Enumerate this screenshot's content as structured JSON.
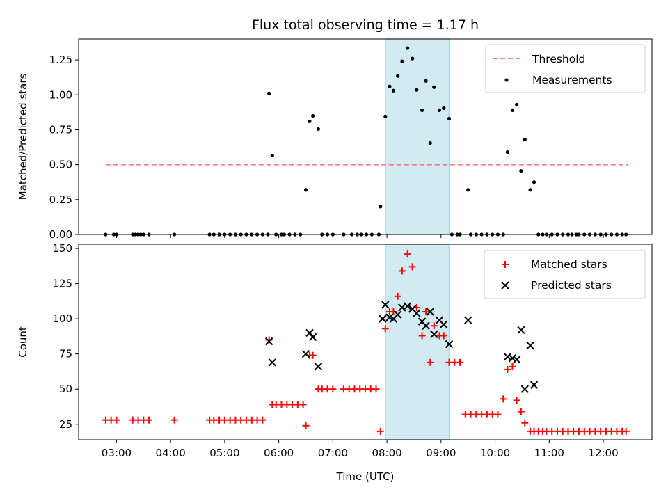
{
  "chart_data": {
    "type": "scatter",
    "title": "Flux total observing time = 1.17 h",
    "xlabel": "Time (UTC)",
    "x_tick_labels": [
      "03:00",
      "04:00",
      "05:00",
      "06:00",
      "07:00",
      "08:00",
      "09:00",
      "10:00",
      "11:00",
      "12:00"
    ],
    "x_ticks_hours": [
      3,
      4,
      5,
      6,
      7,
      8,
      9,
      10,
      11,
      12
    ],
    "xlim_hours": [
      2.3,
      12.9
    ],
    "highlight_span_hours": [
      7.97,
      9.15
    ],
    "colors": {
      "threshold": "#f08080",
      "measurements": "#000000",
      "matched": "#ff0000",
      "predicted": "#000000",
      "span": "#add8e6"
    },
    "top": {
      "ylabel": "Matched/Predicted stars",
      "ylim": [
        0,
        1.4
      ],
      "yticks": [
        0,
        0.25,
        0.5,
        0.75,
        1.0,
        1.25
      ],
      "ytick_labels": [
        "0.00",
        "0.25",
        "0.50",
        "0.75",
        "1.00",
        "1.25"
      ],
      "threshold": {
        "label": "Threshold",
        "value": 0.5,
        "x_range": [
          2.8,
          12.45
        ]
      },
      "legend": [
        "Threshold",
        "Measurements"
      ],
      "measurements": {
        "label": "Measurements",
        "points": [
          [
            2.8,
            0
          ],
          [
            2.95,
            0
          ],
          [
            3.0,
            0
          ],
          [
            3.3,
            0
          ],
          [
            3.35,
            0
          ],
          [
            3.4,
            0
          ],
          [
            3.45,
            0
          ],
          [
            3.5,
            0
          ],
          [
            3.6,
            0
          ],
          [
            4.07,
            0
          ],
          [
            4.72,
            0
          ],
          [
            4.8,
            0
          ],
          [
            4.9,
            0
          ],
          [
            5.0,
            0
          ],
          [
            5.1,
            0
          ],
          [
            5.2,
            0
          ],
          [
            5.3,
            0
          ],
          [
            5.4,
            0
          ],
          [
            5.5,
            0
          ],
          [
            5.6,
            0
          ],
          [
            5.7,
            0
          ],
          [
            5.8,
            0
          ],
          [
            5.82,
            1.01
          ],
          [
            5.88,
            0.565
          ],
          [
            5.95,
            0
          ],
          [
            6.05,
            0
          ],
          [
            6.1,
            0
          ],
          [
            6.2,
            0
          ],
          [
            6.3,
            0
          ],
          [
            6.4,
            0
          ],
          [
            6.5,
            0.32
          ],
          [
            6.57,
            0.81
          ],
          [
            6.63,
            0.85
          ],
          [
            6.73,
            0.755
          ],
          [
            6.8,
            0
          ],
          [
            6.9,
            0
          ],
          [
            7.0,
            0
          ],
          [
            7.2,
            0
          ],
          [
            7.35,
            0
          ],
          [
            7.45,
            0
          ],
          [
            7.52,
            0
          ],
          [
            7.62,
            0
          ],
          [
            7.72,
            0
          ],
          [
            7.85,
            0
          ],
          [
            7.88,
            0.2
          ],
          [
            7.97,
            0.845
          ],
          [
            8.05,
            1.06
          ],
          [
            8.12,
            1.03
          ],
          [
            8.2,
            1.135
          ],
          [
            8.28,
            1.24
          ],
          [
            8.38,
            1.335
          ],
          [
            8.47,
            1.26
          ],
          [
            8.55,
            1.035
          ],
          [
            8.65,
            0.89
          ],
          [
            8.72,
            1.1
          ],
          [
            8.8,
            0.655
          ],
          [
            8.87,
            1.055
          ],
          [
            8.97,
            0.89
          ],
          [
            9.05,
            0.905
          ],
          [
            9.15,
            0.83
          ],
          [
            9.2,
            0
          ],
          [
            9.3,
            0
          ],
          [
            9.35,
            0
          ],
          [
            9.5,
            0.32
          ],
          [
            9.55,
            0
          ],
          [
            9.65,
            0
          ],
          [
            9.75,
            0
          ],
          [
            9.85,
            0
          ],
          [
            9.95,
            0
          ],
          [
            10.05,
            0
          ],
          [
            10.15,
            0
          ],
          [
            10.23,
            0.59
          ],
          [
            10.32,
            0.89
          ],
          [
            10.4,
            0.93
          ],
          [
            10.48,
            0.455
          ],
          [
            10.55,
            0.68
          ],
          [
            10.65,
            0.32
          ],
          [
            10.72,
            0.375
          ],
          [
            10.8,
            0
          ],
          [
            10.88,
            0
          ],
          [
            10.95,
            0
          ],
          [
            11.05,
            0
          ],
          [
            11.15,
            0
          ],
          [
            11.25,
            0
          ],
          [
            11.35,
            0
          ],
          [
            11.42,
            0
          ],
          [
            11.5,
            0
          ],
          [
            11.55,
            0
          ],
          [
            11.65,
            0
          ],
          [
            11.75,
            0
          ],
          [
            11.85,
            0
          ],
          [
            11.95,
            0
          ],
          [
            12.05,
            0
          ],
          [
            12.15,
            0
          ],
          [
            12.25,
            0
          ],
          [
            12.35,
            0
          ],
          [
            12.42,
            0
          ]
        ]
      }
    },
    "bottom": {
      "ylabel": "Count",
      "ylim": [
        14,
        153
      ],
      "yticks": [
        25,
        50,
        75,
        100,
        125,
        150
      ],
      "ytick_labels": [
        "25",
        "50",
        "75",
        "100",
        "125",
        "150"
      ],
      "legend": [
        "Matched stars",
        "Predicted stars"
      ],
      "matched": {
        "label": "Matched stars",
        "points": [
          [
            2.8,
            28
          ],
          [
            2.9,
            28
          ],
          [
            3.0,
            28
          ],
          [
            3.3,
            28
          ],
          [
            3.4,
            28
          ],
          [
            3.5,
            28
          ],
          [
            3.6,
            28
          ],
          [
            4.07,
            28
          ],
          [
            4.72,
            28
          ],
          [
            4.8,
            28
          ],
          [
            4.9,
            28
          ],
          [
            5.0,
            28
          ],
          [
            5.1,
            28
          ],
          [
            5.2,
            28
          ],
          [
            5.3,
            28
          ],
          [
            5.4,
            28
          ],
          [
            5.5,
            28
          ],
          [
            5.6,
            28
          ],
          [
            5.7,
            28
          ],
          [
            5.82,
            85
          ],
          [
            5.88,
            39
          ],
          [
            5.95,
            39
          ],
          [
            6.05,
            39
          ],
          [
            6.15,
            39
          ],
          [
            6.25,
            39
          ],
          [
            6.35,
            39
          ],
          [
            6.45,
            39
          ],
          [
            6.5,
            24
          ],
          [
            6.57,
            74
          ],
          [
            6.63,
            74
          ],
          [
            6.73,
            50
          ],
          [
            6.8,
            50
          ],
          [
            6.9,
            50
          ],
          [
            7.0,
            50
          ],
          [
            7.2,
            50
          ],
          [
            7.3,
            50
          ],
          [
            7.4,
            50
          ],
          [
            7.5,
            50
          ],
          [
            7.6,
            50
          ],
          [
            7.7,
            50
          ],
          [
            7.8,
            50
          ],
          [
            7.88,
            20
          ],
          [
            7.97,
            93
          ],
          [
            8.05,
            105
          ],
          [
            8.12,
            105
          ],
          [
            8.2,
            116
          ],
          [
            8.28,
            134
          ],
          [
            8.38,
            146
          ],
          [
            8.47,
            137
          ],
          [
            8.55,
            108
          ],
          [
            8.65,
            88
          ],
          [
            8.72,
            105
          ],
          [
            8.8,
            69
          ],
          [
            8.87,
            95
          ],
          [
            8.97,
            88
          ],
          [
            9.05,
            88
          ],
          [
            9.15,
            69
          ],
          [
            9.25,
            69
          ],
          [
            9.35,
            69
          ],
          [
            9.45,
            32
          ],
          [
            9.55,
            32
          ],
          [
            9.65,
            32
          ],
          [
            9.75,
            32
          ],
          [
            9.85,
            32
          ],
          [
            9.95,
            32
          ],
          [
            10.05,
            32
          ],
          [
            10.15,
            43
          ],
          [
            10.23,
            64
          ],
          [
            10.32,
            66
          ],
          [
            10.4,
            42
          ],
          [
            10.48,
            34
          ],
          [
            10.55,
            26
          ],
          [
            10.65,
            20
          ],
          [
            10.72,
            20
          ],
          [
            10.8,
            20
          ],
          [
            10.88,
            20
          ],
          [
            10.95,
            20
          ],
          [
            11.05,
            20
          ],
          [
            11.15,
            20
          ],
          [
            11.25,
            20
          ],
          [
            11.35,
            20
          ],
          [
            11.45,
            20
          ],
          [
            11.55,
            20
          ],
          [
            11.65,
            20
          ],
          [
            11.75,
            20
          ],
          [
            11.85,
            20
          ],
          [
            11.95,
            20
          ],
          [
            12.05,
            20
          ],
          [
            12.15,
            20
          ],
          [
            12.25,
            20
          ],
          [
            12.35,
            20
          ],
          [
            12.42,
            20
          ]
        ]
      },
      "predicted": {
        "label": "Predicted stars",
        "points": [
          [
            5.82,
            84
          ],
          [
            5.88,
            69
          ],
          [
            6.5,
            75
          ],
          [
            6.57,
            90
          ],
          [
            6.63,
            87
          ],
          [
            6.73,
            66
          ],
          [
            7.92,
            100
          ],
          [
            7.97,
            110
          ],
          [
            8.05,
            101
          ],
          [
            8.12,
            100
          ],
          [
            8.2,
            103
          ],
          [
            8.28,
            108
          ],
          [
            8.38,
            109
          ],
          [
            8.47,
            107
          ],
          [
            8.55,
            104
          ],
          [
            8.65,
            98
          ],
          [
            8.72,
            95
          ],
          [
            8.8,
            105
          ],
          [
            8.87,
            89
          ],
          [
            8.97,
            99
          ],
          [
            9.05,
            96
          ],
          [
            9.15,
            82
          ],
          [
            9.5,
            99
          ],
          [
            10.23,
            73
          ],
          [
            10.32,
            72
          ],
          [
            10.4,
            71
          ],
          [
            10.48,
            92
          ],
          [
            10.55,
            50
          ],
          [
            10.65,
            81
          ],
          [
            10.72,
            53
          ]
        ]
      }
    }
  }
}
